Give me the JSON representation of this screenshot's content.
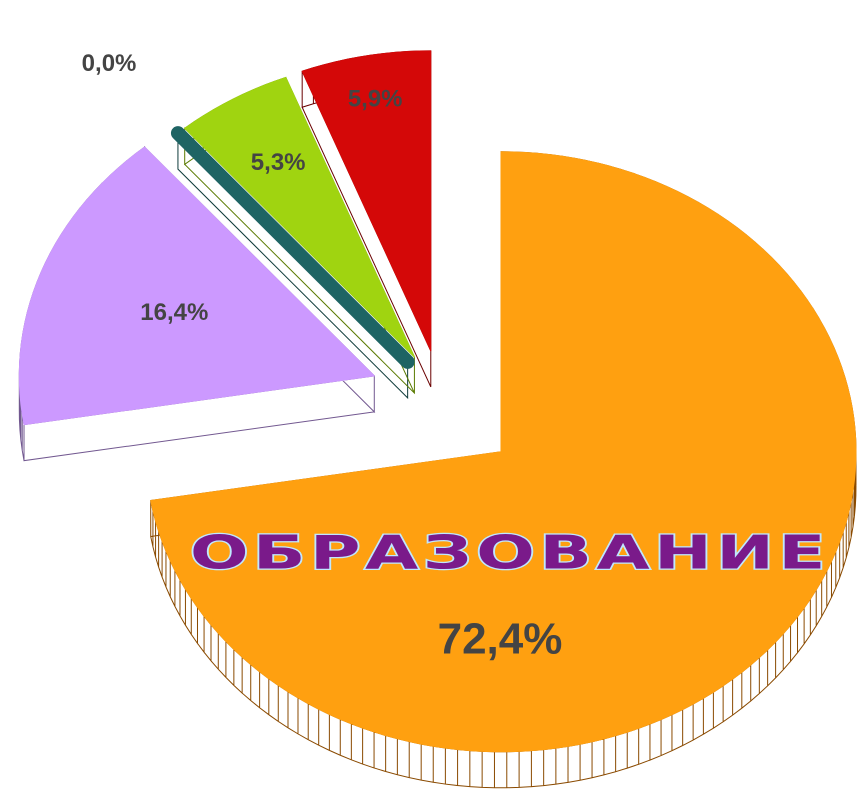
{
  "chart_data": {
    "type": "pie",
    "categories": [
      "ОБРАЗОВАНИЕ",
      null,
      null,
      null,
      null
    ],
    "values": [
      72.4,
      16.4,
      0.0,
      5.3,
      5.9
    ],
    "value_labels": [
      "72,4%",
      "16,4%",
      "0,0%",
      "5,3%",
      "5,9%"
    ],
    "colors": [
      "#ffa010",
      "#cc99ff",
      "#1e6464",
      "#a0d410",
      "#d40808"
    ],
    "side_colors": [
      "#8a4a00",
      "#725890",
      "#0e3a3a",
      "#5a7a00",
      "#6a0000"
    ],
    "exploded": true,
    "three_d": true
  }
}
